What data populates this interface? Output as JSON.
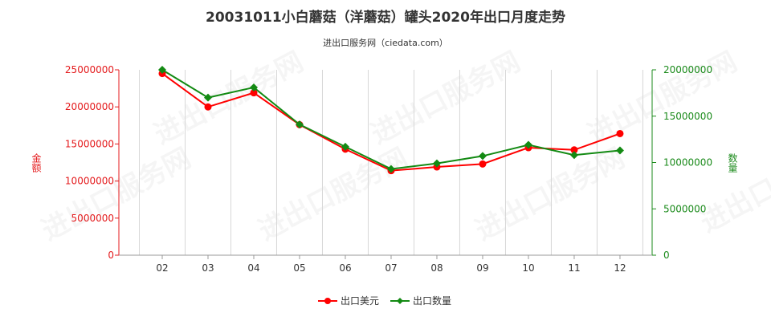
{
  "chart_data": {
    "type": "line",
    "title": "20031011小白蘑菇（洋蘑菇）罐头2020年出口月度走势",
    "subtitle": "进出口服务网（ciedata.com）",
    "categories": [
      "02",
      "03",
      "04",
      "05",
      "06",
      "07",
      "08",
      "09",
      "10",
      "11",
      "12"
    ],
    "y_left": {
      "label": "金额",
      "ticks": [
        "0",
        "5000000",
        "10000000",
        "15000000",
        "20000000",
        "25000000"
      ],
      "ylim": [
        0,
        25000000
      ],
      "color": "#e41a1c"
    },
    "y_right": {
      "label": "数量",
      "ticks": [
        "0",
        "5000000",
        "10000000",
        "15000000",
        "20000000"
      ],
      "ylim": [
        0,
        20000000
      ],
      "color": "#1a8a1a"
    },
    "series": [
      {
        "name": "出口美元",
        "axis": "left",
        "color": "#ff0000",
        "values": [
          24500000,
          20000000,
          21900000,
          17600000,
          14300000,
          11400000,
          11900000,
          12300000,
          14500000,
          14200000,
          16400000
        ]
      },
      {
        "name": "出口数量",
        "axis": "right",
        "color": "#138a13",
        "values": [
          20000000,
          17000000,
          18100000,
          14100000,
          11700000,
          9300000,
          9900000,
          10700000,
          11900000,
          10800000,
          11300000
        ]
      }
    ],
    "legend_position": "bottom-center",
    "grid": "vertical",
    "watermark": "进出口服务网"
  }
}
